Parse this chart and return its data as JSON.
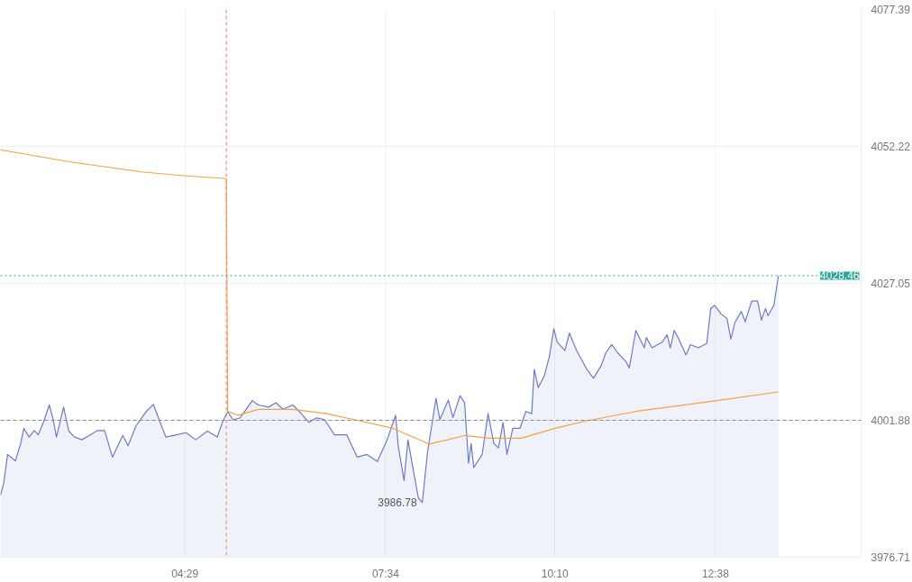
{
  "chart_data": {
    "type": "area",
    "xlim": [
      1.65,
      14.87
    ],
    "xticks": [
      {
        "value": 4.483,
        "label": "04:29"
      },
      {
        "value": 7.567,
        "label": "07:34"
      },
      {
        "value": 10.167,
        "label": "10:10"
      },
      {
        "value": 12.633,
        "label": "12:38"
      }
    ],
    "ylim": [
      3976.71,
      4077.39
    ],
    "yticks": [
      3976.71,
      4001.88,
      4027.05,
      4052.22,
      4077.39
    ],
    "grid": true,
    "series": [
      {
        "color": "#6a7cc6",
        "x": [
          1.65,
          1.7,
          1.76,
          1.88,
          1.96,
          2.01,
          2.09,
          2.17,
          2.23,
          2.31,
          2.4,
          2.46,
          2.51,
          2.62,
          2.7,
          2.79,
          2.9,
          3.03,
          3.14,
          3.25,
          3.37,
          3.53,
          3.61,
          3.73,
          3.89,
          4.0,
          4.04,
          4.19,
          4.31,
          4.5,
          4.65,
          4.83,
          4.98,
          5.06,
          5.14,
          5.22,
          5.33,
          5.52,
          5.61,
          5.77,
          5.88,
          5.99,
          6.14,
          6.24,
          6.39,
          6.5,
          6.63,
          6.78,
          6.97,
          7.13,
          7.28,
          7.44,
          7.59,
          7.72,
          7.76,
          7.85,
          7.91,
          7.98,
          8.07,
          8.13,
          8.21,
          8.34,
          8.4,
          8.53,
          8.6,
          8.71,
          8.78,
          8.84,
          8.88,
          8.92,
          9.05,
          9.14,
          9.23,
          9.3,
          9.37,
          9.43,
          9.52,
          9.63,
          9.72,
          9.81,
          9.85,
          9.91,
          10.0,
          10.08,
          10.15,
          10.2,
          10.32,
          10.39,
          10.5,
          10.66,
          10.76,
          10.88,
          10.95,
          11.04,
          11.13,
          11.25,
          11.31,
          11.41,
          11.54,
          11.57,
          11.66,
          11.82,
          11.89,
          11.94,
          12.0,
          12.07,
          12.18,
          12.25,
          12.37,
          12.5,
          12.56,
          12.62,
          12.72,
          12.81,
          12.87,
          12.93,
          13.03,
          13.09,
          13.19,
          13.28,
          13.34,
          13.4,
          13.44,
          13.53,
          13.6
        ],
        "values": [
          3988.1,
          3990.3,
          3995.6,
          3994.4,
          3997.6,
          4000.4,
          3998.8,
          4000.0,
          3999.2,
          4001.5,
          4004.7,
          4002.0,
          3998.8,
          4004.3,
          3999.9,
          3998.8,
          3998.3,
          3999.2,
          4000.0,
          4000.0,
          3995.1,
          3999.1,
          3997.2,
          4000.8,
          4003.5,
          4004.8,
          4003.5,
          3998.8,
          3999.1,
          3999.6,
          3998.3,
          3999.9,
          3998.8,
          4001.5,
          4003.5,
          4002.0,
          4002.3,
          4005.5,
          4004.7,
          4004.3,
          4005.1,
          4003.9,
          4004.7,
          4003.5,
          4001.5,
          4002.3,
          4002.0,
          3999.2,
          3999.2,
          3995.1,
          3995.6,
          3994.3,
          3998.3,
          4002.8,
          3997.2,
          3990.8,
          3998.3,
          3993.5,
          3987.6,
          3986.78,
          3996.0,
          4005.9,
          4002.0,
          4005.6,
          4002.4,
          4006.4,
          4005.1,
          3994.0,
          3997.6,
          3993.2,
          3995.6,
          4003.1,
          3997.6,
          3996.8,
          4001.5,
          3995.6,
          4000.4,
          4000.4,
          4003.5,
          4003.1,
          4011.2,
          4007.9,
          4009.9,
          4013.5,
          4018.7,
          4016.3,
          4014.7,
          4017.9,
          4014.7,
          4011.2,
          4009.6,
          4012.0,
          4014.3,
          4015.8,
          4014.3,
          4012.8,
          4011.5,
          4018.4,
          4015.2,
          4017.1,
          4015.2,
          4016.3,
          4017.6,
          4015.2,
          4018.4,
          4016.8,
          4013.9,
          4015.8,
          4015.2,
          4016.0,
          4022.4,
          4023.0,
          4021.4,
          4020.6,
          4016.8,
          4019.8,
          4021.9,
          4020.0,
          4023.8,
          4023.8,
          4020.3,
          4022.4,
          4021.1,
          4023.0,
          4028.46
        ]
      },
      {
        "type": "line",
        "color": "#f5a04a",
        "x": [
          1.65,
          2.7,
          3.84,
          4.51,
          5.12,
          5.14,
          5.3,
          5.61,
          6.14,
          6.66,
          7.08,
          7.68,
          8.24,
          8.79,
          9.14,
          9.65,
          10.17,
          10.66,
          11.41,
          12.66,
          13.6
        ],
        "values": [
          4051.6,
          4049.4,
          4047.5,
          4046.8,
          4046.3,
          4003.5,
          4002.8,
          4003.9,
          4003.9,
          4003.1,
          4002.0,
          4000.4,
          3997.5,
          3999.1,
          3998.6,
          3998.6,
          4000.4,
          4001.8,
          4003.5,
          4005.5,
          4007.1
        ]
      }
    ],
    "ref_lines": [
      {
        "axis": "x",
        "value": 5.12,
        "color": "#f4907a",
        "line_style": "dashed"
      },
      {
        "axis": "y",
        "value": 4001.88,
        "color": "#888888",
        "line_style": "dashed"
      },
      {
        "axis": "y",
        "value": 4028.46,
        "label": "4028.46",
        "color": "#26a69a",
        "line_style": "dotted"
      }
    ],
    "annotations": [
      {
        "text": "3986.78",
        "x": 8.13,
        "y": 3986.78
      }
    ]
  }
}
